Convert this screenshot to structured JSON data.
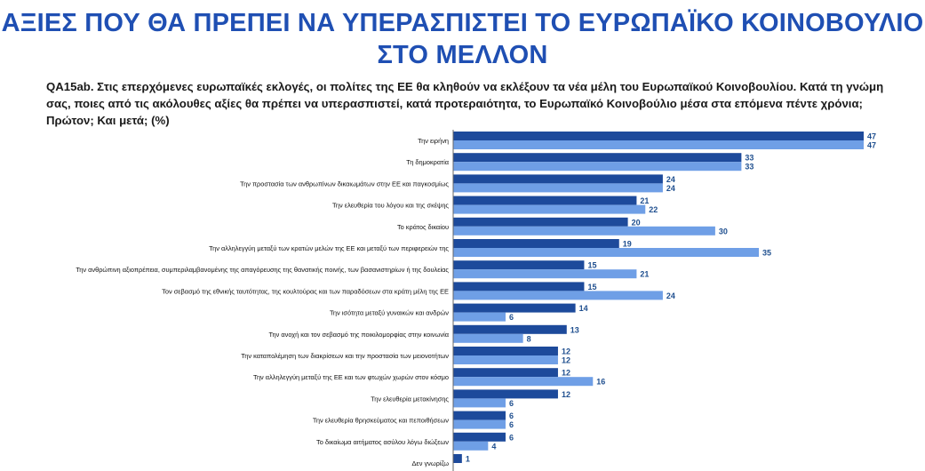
{
  "title": "ΑΞΙΕΣ ΠΟΥ ΘΑ ΠΡΕΠΕΙ ΝΑ ΥΠΕΡΑΣΠΙΣΤΕΙ ΤΟ ΕΥΡΩΠΑΪΚΟ ΚΟΙΝΟΒΟΥΛΙΟ ΣΤΟ ΜΕΛΛΟΝ",
  "question": "QA15ab. Στις επερχόμενες ευρωπαϊκές εκλογές, οι πολίτες της ΕΕ θα κληθούν να εκλέξουν τα νέα μέλη του Ευρωπαϊκού Κοινοβουλίου. Κατά τη γνώμη σας, ποιες από τις ακόλουθες αξίες θα πρέπει να υπερασπιστεί, κατά προτεραιότητα, το Ευρωπαϊκό Κοινοβούλιο μέσα στα επόμενα πέντε χρόνια; Πρώτον; Και μετά; (%)",
  "colors": {
    "title": "#1f4fb3",
    "series_first": "#1d4a9b",
    "series_total": "#6f9fe6",
    "value_text": "#1f4f8f"
  },
  "chart_data": {
    "type": "bar",
    "orientation": "horizontal",
    "categories": [
      "Την ειρήνη",
      "Τη δημοκρατία",
      "Την προστασία των ανθρωπίνων δικαιωμάτων στην ΕΕ και παγκοσμίως",
      "Την ελευθερία του λόγου και της σκέψης",
      "Το κράτος δικαίου",
      "Την αλληλεγγύη μεταξύ των κρατών μελών της ΕΕ και μεταξύ των περιφερειών της",
      "Την ανθρώπινη αξιοπρέπεια, συμπεριλαμβανομένης της απαγόρευσης της θανατικής ποινής, των βασανιστηρίων ή της δουλείας",
      "Τον σεβασμό της εθνικής ταυτότητας, της κουλτούρας και των παραδόσεων στα κράτη μέλη της ΕΕ",
      "Την ισότητα μεταξύ γυναικών και ανδρών",
      "Την ανοχή και τον σεβασμό της ποικιλομορφίας στην κοινωνία",
      "Την καταπολέμηση των διακρίσεων και την προστασία των μειονοτήτων",
      "Την αλληλεγγύη μεταξύ της ΕΕ και των φτωχών χωρών στον κόσμο",
      "Την ελευθερία μετακίνησης",
      "Την ελευθερία θρησκεύματος και πεποιθήσεων",
      "Το δικαίωμα αιτήματος ασύλου λόγω διώξεων",
      "Δεν γνωρίζω"
    ],
    "series": [
      {
        "values": [
          47,
          33,
          24,
          21,
          20,
          19,
          15,
          15,
          14,
          13,
          12,
          12,
          12,
          6,
          6,
          1
        ]
      },
      {
        "values": [
          47,
          33,
          24,
          22,
          30,
          35,
          21,
          24,
          6,
          8,
          12,
          16,
          6,
          6,
          4,
          null
        ]
      }
    ],
    "xlim": [
      0,
      50
    ],
    "grid": false,
    "legend": "none"
  }
}
